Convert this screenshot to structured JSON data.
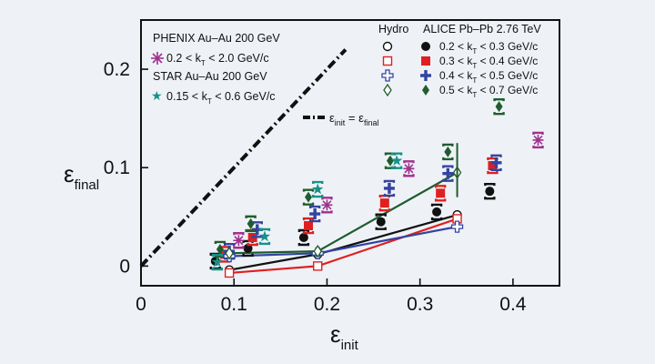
{
  "chart_data": {
    "type": "scatter",
    "xlabel": "ε",
    "xlabel_sub": "init",
    "ylabel": "ε",
    "ylabel_sub": "final",
    "xlim": [
      0,
      0.45
    ],
    "ylim": [
      -0.02,
      0.25
    ],
    "x_ticks": [
      0,
      0.1,
      0.2,
      0.3,
      0.4
    ],
    "x_tick_labels": [
      "0",
      "0.1",
      "0.2",
      "0.3",
      "0.4"
    ],
    "y_ticks": [
      0,
      0.1,
      0.2
    ],
    "y_tick_labels": [
      "0",
      "0.1",
      "0.2"
    ],
    "grid": false,
    "reference_line": {
      "label": "ε",
      "label_sub_init": "init",
      "label_eq": " = ε",
      "label_sub_final": "final",
      "x": [
        0,
        0.22
      ],
      "y": [
        0,
        0.22
      ]
    },
    "legend": {
      "phenix_title": "PHENIX Au–Au 200 GeV",
      "phenix_entry": "0.2 < k",
      "phenix_entry_sub": "T",
      "phenix_entry_tail": " < 2.0 GeV/c",
      "star_title": "STAR Au–Au 200 GeV",
      "star_entry": "0.15 < k",
      "star_entry_sub": "T",
      "star_entry_tail": " < 0.6 GeV/c",
      "hydro_title": "Hydro",
      "alice_title": "ALICE Pb–Pb 2.76 TeV",
      "alice_entries": [
        {
          "pre": "0.2 < k",
          "sub": "T",
          "post": " < 0.3 GeV/c"
        },
        {
          "pre": "0.3 < k",
          "sub": "T",
          "post": " < 0.4 GeV/c"
        },
        {
          "pre": "0.4 < k",
          "sub": "T",
          "post": " < 0.5 GeV/c"
        },
        {
          "pre": "0.5 < k",
          "sub": "T",
          "post": " < 0.7 GeV/c"
        }
      ]
    },
    "series": [
      {
        "name": "0.2 < kT < 0.3 GeV/c",
        "group": "ALICE",
        "marker": "circle",
        "color": "#111111",
        "x": [
          0.08,
          0.115,
          0.175,
          0.258,
          0.318,
          0.375
        ],
        "y": [
          0.005,
          0.018,
          0.029,
          0.045,
          0.055,
          0.076
        ]
      },
      {
        "name": "0.3 < kT < 0.4 GeV/c",
        "group": "ALICE",
        "marker": "square",
        "color": "#e02020",
        "x": [
          0.09,
          0.12,
          0.18,
          0.262,
          0.322,
          0.378
        ],
        "y": [
          0.012,
          0.029,
          0.041,
          0.064,
          0.074,
          0.102
        ]
      },
      {
        "name": "0.4 < kT < 0.5 GeV/c",
        "group": "ALICE",
        "marker": "plus",
        "color": "#3344a0",
        "x": [
          0.095,
          0.125,
          0.187,
          0.267,
          0.33,
          0.382
        ],
        "y": [
          0.015,
          0.037,
          0.053,
          0.079,
          0.094,
          0.105
        ]
      },
      {
        "name": "0.5 < kT < 0.7 GeV/c",
        "group": "ALICE",
        "marker": "diamond",
        "color": "#1f5c2e",
        "x": [
          0.085,
          0.118,
          0.18,
          0.268,
          0.33,
          0.385
        ],
        "y": [
          0.017,
          0.043,
          0.07,
          0.107,
          0.116,
          0.162
        ]
      },
      {
        "name": "PHENIX",
        "group": "PHENIX",
        "marker": "asterisk",
        "color": "#a0308c",
        "x": [
          0.105,
          0.2,
          0.288,
          0.427
        ],
        "y": [
          0.026,
          0.062,
          0.099,
          0.128
        ]
      },
      {
        "name": "STAR",
        "group": "STAR",
        "marker": "star",
        "color": "#16918a",
        "x": [
          0.082,
          0.133,
          0.19,
          0.275
        ],
        "y": [
          0.004,
          0.03,
          0.078,
          0.107
        ]
      },
      {
        "name": "Hydro 0.2-0.3",
        "group": "Hydro",
        "marker": "open-circle",
        "color": "#111111",
        "x": [
          0.095,
          0.19,
          0.34
        ],
        "y": [
          -0.004,
          0.012,
          0.052
        ]
      },
      {
        "name": "Hydro 0.3-0.4",
        "group": "Hydro",
        "marker": "open-square",
        "color": "#e02020",
        "x": [
          0.095,
          0.19,
          0.34
        ],
        "y": [
          -0.007,
          0.0,
          0.048
        ]
      },
      {
        "name": "Hydro 0.4-0.5",
        "group": "Hydro",
        "marker": "open-plus",
        "color": "#3344a0",
        "x": [
          0.095,
          0.19,
          0.34
        ],
        "y": [
          0.01,
          0.013,
          0.04
        ]
      },
      {
        "name": "Hydro 0.5-0.7",
        "group": "Hydro",
        "marker": "open-diamond",
        "color": "#1f5c2e",
        "x": [
          0.095,
          0.19,
          0.34
        ],
        "y": [
          0.013,
          0.015,
          0.095
        ]
      }
    ]
  }
}
